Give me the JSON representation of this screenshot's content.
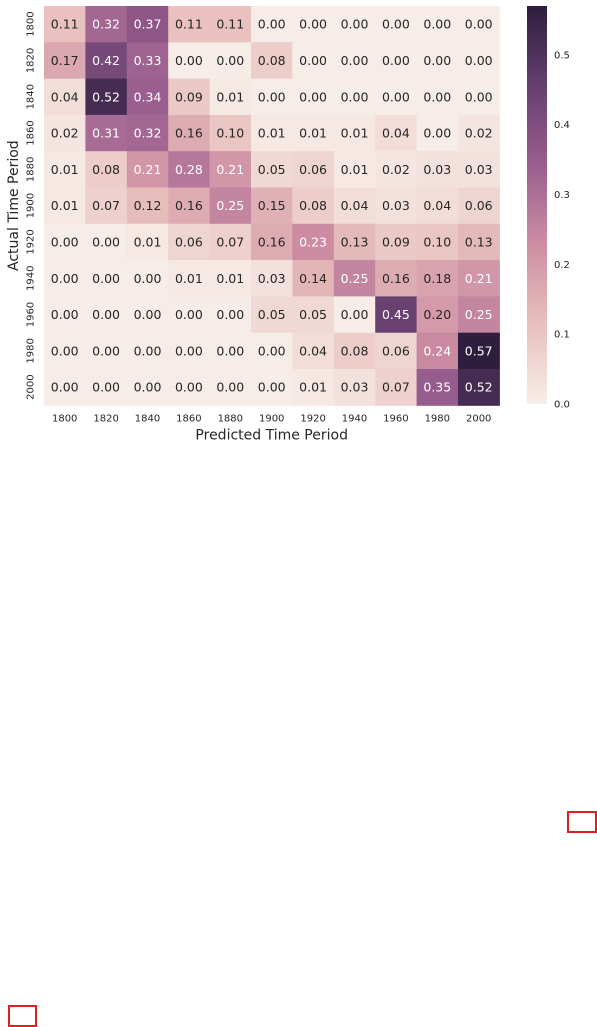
{
  "chart_data": {
    "type": "heatmap",
    "title": "",
    "xlabel": "Predicted Time Period",
    "ylabel": "Actual Time Period",
    "x_categories": [
      "1800",
      "1820",
      "1840",
      "1860",
      "1880",
      "1900",
      "1920",
      "1940",
      "1960",
      "1980",
      "2000"
    ],
    "y_categories": [
      "1800",
      "1820",
      "1840",
      "1860",
      "1880",
      "1900",
      "1920",
      "1940",
      "1960",
      "1980",
      "2000"
    ],
    "values": [
      [
        0.11,
        0.32,
        0.37,
        0.11,
        0.11,
        0.0,
        0.0,
        0.0,
        0.0,
        0.0,
        0.0
      ],
      [
        0.17,
        0.42,
        0.33,
        0.0,
        0.0,
        0.08,
        0.0,
        0.0,
        0.0,
        0.0,
        0.0
      ],
      [
        0.04,
        0.52,
        0.34,
        0.09,
        0.01,
        0.0,
        0.0,
        0.0,
        0.0,
        0.0,
        0.0
      ],
      [
        0.02,
        0.31,
        0.32,
        0.16,
        0.1,
        0.01,
        0.01,
        0.01,
        0.04,
        0.0,
        0.02
      ],
      [
        0.01,
        0.08,
        0.21,
        0.28,
        0.21,
        0.05,
        0.06,
        0.01,
        0.02,
        0.03,
        0.03
      ],
      [
        0.01,
        0.07,
        0.12,
        0.16,
        0.25,
        0.15,
        0.08,
        0.04,
        0.03,
        0.04,
        0.06
      ],
      [
        0.0,
        0.0,
        0.01,
        0.06,
        0.07,
        0.16,
        0.23,
        0.13,
        0.09,
        0.1,
        0.13
      ],
      [
        0.0,
        0.0,
        0.0,
        0.01,
        0.01,
        0.03,
        0.14,
        0.25,
        0.16,
        0.18,
        0.21
      ],
      [
        0.0,
        0.0,
        0.0,
        0.0,
        0.0,
        0.05,
        0.05,
        0.0,
        0.45,
        0.2,
        0.25
      ],
      [
        0.0,
        0.0,
        0.0,
        0.0,
        0.0,
        0.0,
        0.04,
        0.08,
        0.06,
        0.24,
        0.57
      ],
      [
        0.0,
        0.0,
        0.0,
        0.0,
        0.0,
        0.0,
        0.01,
        0.03,
        0.07,
        0.35,
        0.52
      ]
    ],
    "color_range": [
      0.0,
      0.57
    ],
    "colorbar_ticks": [
      "0.0",
      "0.1",
      "0.2",
      "0.3",
      "0.4",
      "0.5"
    ],
    "colormap": [
      "#f7ede8",
      "#e8c0bd",
      "#cd8ea3",
      "#9a5e8f",
      "#653f6f",
      "#2d1e3e"
    ],
    "grid": false,
    "legend": "right colorbar"
  }
}
